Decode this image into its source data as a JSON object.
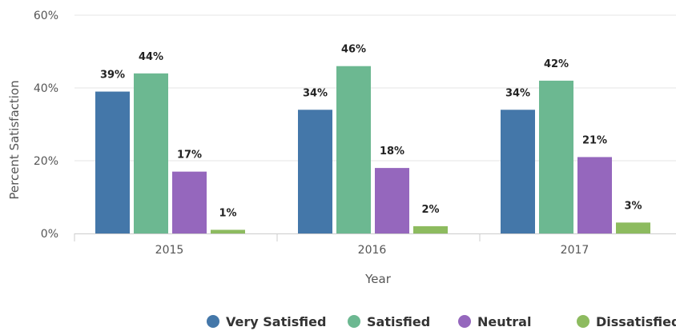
{
  "chart_data": {
    "type": "bar",
    "categories": [
      "2015",
      "2016",
      "2017"
    ],
    "series": [
      {
        "name": "Very Satisfied",
        "values": [
          39,
          34,
          34
        ],
        "color": "#4477a9"
      },
      {
        "name": "Satisfied",
        "values": [
          44,
          46,
          42
        ],
        "color": "#6cb891"
      },
      {
        "name": "Neutral",
        "values": [
          17,
          18,
          21
        ],
        "color": "#9567bd"
      },
      {
        "name": "Dissatisfied",
        "values": [
          1,
          2,
          3
        ],
        "color": "#8dbb5f"
      }
    ],
    "data_labels": [
      [
        "39%",
        "34%",
        "34%"
      ],
      [
        "44%",
        "46%",
        "42%"
      ],
      [
        "17%",
        "18%",
        "21%"
      ],
      [
        "1%",
        "2%",
        "3%"
      ]
    ],
    "y_ticks": [
      {
        "value": 0,
        "label": "0%"
      },
      {
        "value": 20,
        "label": "20%"
      },
      {
        "value": 40,
        "label": "40%"
      },
      {
        "value": 60,
        "label": "60%"
      }
    ],
    "title": "",
    "xlabel": "Year",
    "ylabel": "Percent Satisfaction",
    "ylim": [
      0,
      60
    ],
    "grid": true,
    "legend_position": "bottom-right"
  }
}
